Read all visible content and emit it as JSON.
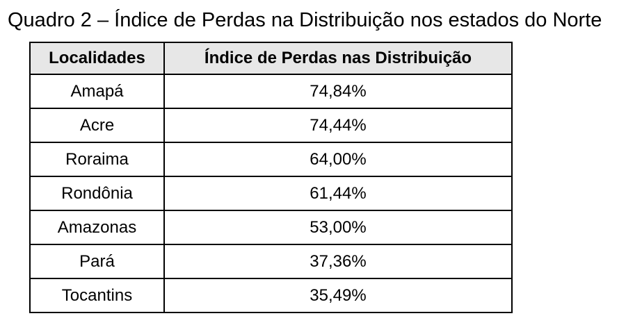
{
  "page": {
    "title": "Quadro 2 – Índice de Perdas na Distribuição nos estados do Norte"
  },
  "table": {
    "headers": {
      "locality": "Localidades",
      "index": "Índice de Perdas nas Distribuição"
    },
    "rows": [
      {
        "locality": "Amapá",
        "value": "74,84%"
      },
      {
        "locality": "Acre",
        "value": "74,44%"
      },
      {
        "locality": "Roraima",
        "value": "64,00%"
      },
      {
        "locality": "Rondônia",
        "value": "61,44%"
      },
      {
        "locality": "Amazonas",
        "value": "53,00%"
      },
      {
        "locality": "Pará",
        "value": "37,36%"
      },
      {
        "locality": "Tocantins",
        "value": "35,49%"
      }
    ]
  },
  "colors": {
    "header_background": "#e7e7e7",
    "border": "#000000",
    "text": "#000000",
    "page_background": "#ffffff"
  },
  "chart_data": {
    "type": "table",
    "title": "Quadro 2 – Índice de Perdas na Distribuição nos estados do Norte",
    "columns": [
      "Localidades",
      "Índice de Perdas nas Distribuição"
    ],
    "categories": [
      "Amapá",
      "Acre",
      "Roraima",
      "Rondônia",
      "Amazonas",
      "Pará",
      "Tocantins"
    ],
    "values": [
      74.84,
      74.44,
      64.0,
      61.44,
      53.0,
      37.36,
      35.49
    ],
    "value_format": "percent with comma decimal separator",
    "layout": "caption above table, header row shaded gray, all cells center-aligned, black grid borders"
  }
}
